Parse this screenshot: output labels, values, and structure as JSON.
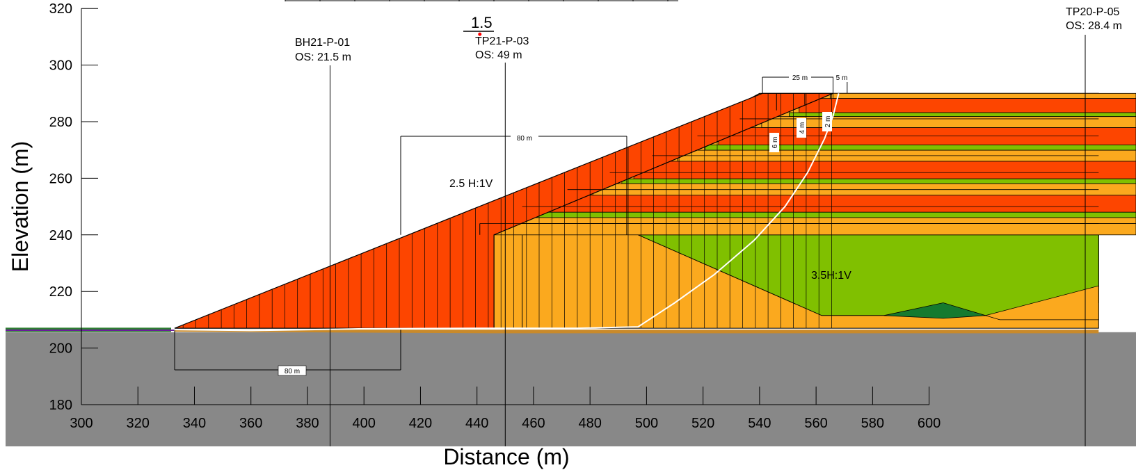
{
  "chart_data": {
    "type": "cross-section",
    "xlabel": "Distance (m)",
    "ylabel": "Elevation (m)",
    "xlim": [
      300,
      600
    ],
    "ylim": [
      180,
      320
    ],
    "x_ticks": [
      300,
      320,
      340,
      360,
      380,
      400,
      420,
      440,
      460,
      480,
      500,
      520,
      540,
      560,
      580,
      600
    ],
    "y_ticks": [
      180,
      200,
      220,
      240,
      260,
      280,
      300,
      320
    ],
    "factor_of_safety": "1.5",
    "boreholes": [
      {
        "id": "BH21-P-01",
        "offset": "OS: 21.5 m",
        "x": 388
      },
      {
        "id": "TP21-P-03",
        "offset": "OS: 49 m",
        "x": 450
      },
      {
        "id": "TP20-P-05",
        "offset": "OS: 28.4 m",
        "x": 658
      }
    ],
    "slope_labels": [
      "2.5 H:1V",
      "3.5H:1V"
    ],
    "dimensions": [
      "80 m",
      "80 m",
      "25 m",
      "5 m",
      "6 m",
      "4 m",
      "2 m"
    ],
    "colors": {
      "red_fill": "#fd4500",
      "orange_fill": "#fba91e",
      "green_fill": "#80c000",
      "dark_green": "#157a2f",
      "foundation_gray": "#888888",
      "slip_surface": "#ffffff",
      "critical_center": "#ff0000"
    }
  }
}
